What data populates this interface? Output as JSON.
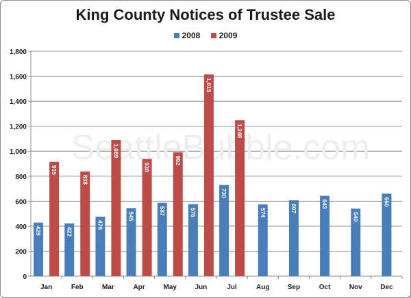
{
  "chart_data": {
    "type": "bar",
    "title": "King County Notices of Trustee Sale",
    "watermark": "SeattleBubble.com",
    "categories": [
      "Jan",
      "Feb",
      "Mar",
      "Apr",
      "May",
      "Jun",
      "Jul",
      "Aug",
      "Sep",
      "Oct",
      "Nov",
      "Dec"
    ],
    "series": [
      {
        "name": "2008",
        "color": "#4a7ebb",
        "values": [
          429,
          422,
          476,
          545,
          587,
          576,
          730,
          574,
          607,
          643,
          540,
          660
        ],
        "labels": [
          "429",
          "422",
          "476",
          "545",
          "587",
          "576",
          "730",
          "574",
          "607",
          "643",
          "540",
          "660"
        ]
      },
      {
        "name": "2009",
        "color": "#be4b48",
        "values": [
          915,
          838,
          1089,
          938,
          992,
          1615,
          1248,
          null,
          null,
          null,
          null,
          null
        ],
        "labels": [
          "915",
          "838",
          "1,089",
          "938",
          "992",
          "1,615",
          "1,248",
          "",
          "",
          "",
          "",
          ""
        ]
      }
    ],
    "ylim": [
      0,
      1800
    ],
    "yticks": [
      0,
      200,
      400,
      600,
      800,
      1000,
      1200,
      1400,
      1600,
      1800
    ],
    "ytick_labels": [
      "0",
      "200",
      "400",
      "600",
      "800",
      "1,000",
      "1,200",
      "1,400",
      "1,600",
      "1,800"
    ],
    "grid": true,
    "legend_position": "top-center"
  }
}
